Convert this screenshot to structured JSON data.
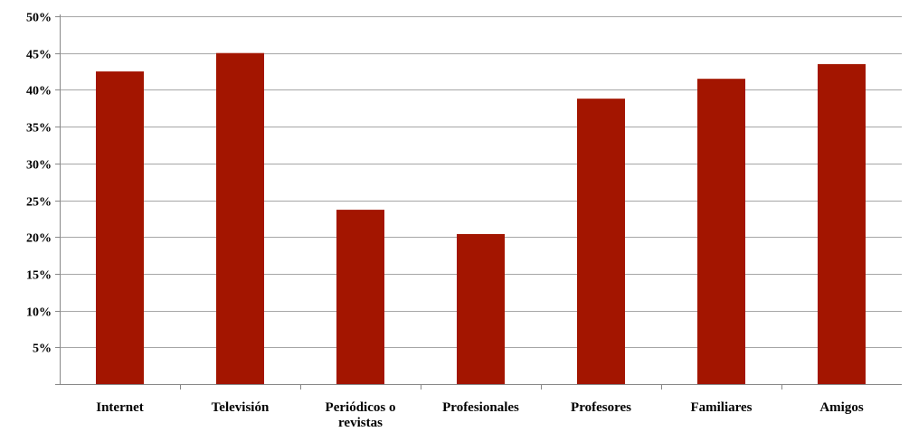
{
  "chart_data": {
    "type": "bar",
    "title": "",
    "xlabel": "",
    "ylabel": "",
    "categories": [
      [
        "Internet"
      ],
      [
        "Televisión"
      ],
      [
        "Periódicos o",
        "revistas"
      ],
      [
        "Profesionales"
      ],
      [
        "Profesores"
      ],
      [
        "Familiares"
      ],
      [
        "Amigos"
      ]
    ],
    "values": [
      42.5,
      45.0,
      23.7,
      20.4,
      38.8,
      41.5,
      43.5
    ],
    "ylim": [
      0,
      50
    ],
    "yticks": [
      5,
      10,
      15,
      20,
      25,
      30,
      35,
      40,
      45,
      50
    ],
    "ytick_labels": [
      "5%",
      "10%",
      "15%",
      "20%",
      "25%",
      "30%",
      "35%",
      "40%",
      "45%",
      "50%"
    ],
    "grid": true,
    "legend": "none",
    "bar_color": "#a31500"
  }
}
